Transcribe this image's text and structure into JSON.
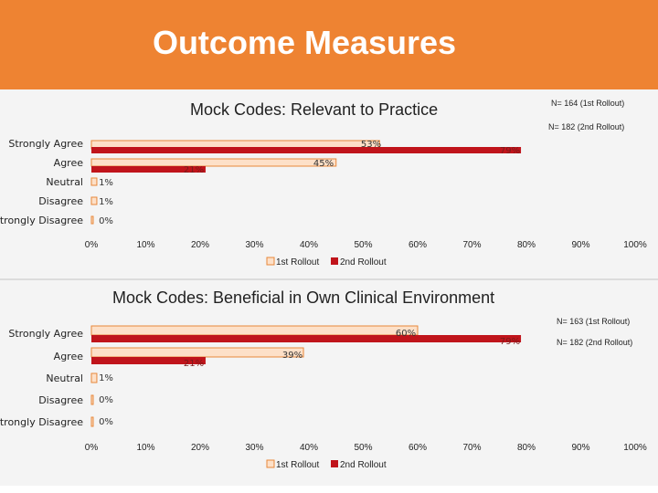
{
  "slide_title": "Outcome Measures",
  "colors": {
    "banner": "#ee8332",
    "rollout1_fill": "#fde0c8",
    "rollout1_stroke": "#e8873a",
    "rollout2": "#c0141b"
  },
  "chart_data": [
    {
      "type": "bar",
      "title": "Mock Codes: Relevant to Practice",
      "categories": [
        "Strongly Agree",
        "Agree",
        "Neutral",
        "Disagree",
        "Strongly Disagree"
      ],
      "series": [
        {
          "name": "1st Rollout",
          "values": [
            53,
            45,
            1,
            1,
            0
          ]
        },
        {
          "name": "2nd Rollout",
          "values": [
            79,
            21,
            null,
            null,
            null
          ]
        }
      ],
      "data_labels": [
        "53%",
        "79%",
        "45%",
        "21%",
        "1%",
        "1%",
        "0%"
      ],
      "x_ticks": [
        "0%",
        "10%",
        "20%",
        "30%",
        "40%",
        "50%",
        "60%",
        "70%",
        "80%",
        "90%",
        "100%"
      ],
      "xlim": [
        0,
        100
      ],
      "legend": [
        "1st Rollout",
        "2nd Rollout"
      ],
      "notes": [
        "N= 164 (1st Rollout)",
        "N= 182 (2nd Rollout)"
      ]
    },
    {
      "type": "bar",
      "title": "Mock Codes: Beneficial in Own Clinical Environment",
      "categories": [
        "Strongly Agree",
        "Agree",
        "Neutral",
        "Disagree",
        "Strongly Disagree"
      ],
      "series": [
        {
          "name": "1st Rollout",
          "values": [
            60,
            39,
            1,
            0,
            0
          ]
        },
        {
          "name": "2nd Rollout",
          "values": [
            79,
            21,
            null,
            null,
            null
          ]
        }
      ],
      "data_labels": [
        "60%",
        "79%",
        "39%",
        "21%",
        "1%",
        "0%",
        "0%"
      ],
      "x_ticks": [
        "0%",
        "10%",
        "20%",
        "30%",
        "40%",
        "50%",
        "60%",
        "70%",
        "80%",
        "90%",
        "100%"
      ],
      "xlim": [
        0,
        100
      ],
      "legend": [
        "1st Rollout",
        "2nd Rollout"
      ],
      "notes": [
        "N= 163 (1st Rollout)",
        "N= 182 (2nd Rollout)"
      ]
    }
  ]
}
